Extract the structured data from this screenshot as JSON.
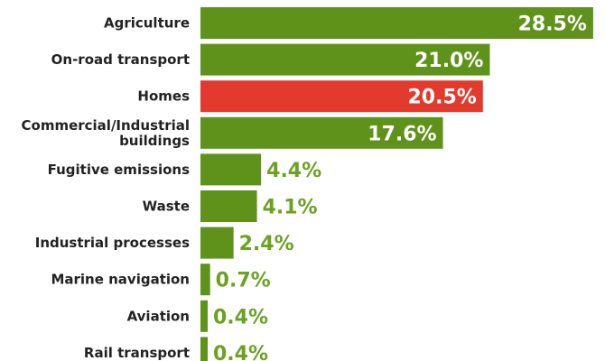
{
  "chart_data": {
    "type": "bar",
    "orientation": "horizontal",
    "categories": [
      "Agriculture",
      "On-road transport",
      "Homes",
      "Commercial/Industrial buildings",
      "Fugitive emissions",
      "Waste",
      "Industrial processes",
      "Marine navigation",
      "Aviation",
      "Rail transport"
    ],
    "category_label_lines": [
      [
        "Agriculture"
      ],
      [
        "On-road transport"
      ],
      [
        "Homes"
      ],
      [
        "Commercial/Industrial",
        "buildings"
      ],
      [
        "Fugitive emissions"
      ],
      [
        "Waste"
      ],
      [
        "Industrial processes"
      ],
      [
        "Marine navigation"
      ],
      [
        "Aviation"
      ],
      [
        "Rail transport"
      ]
    ],
    "values": [
      28.5,
      21.0,
      20.5,
      17.6,
      4.4,
      4.1,
      2.4,
      0.7,
      0.4,
      0.4
    ],
    "value_labels": [
      "28.5%",
      "21.0%",
      "20.5%",
      "17.6%",
      "4.4%",
      "4.1%",
      "2.4%",
      "0.7%",
      "0.4%",
      "0.4%"
    ],
    "highlighted_category": "Homes",
    "title": "",
    "xlabel": "",
    "ylabel": "",
    "grid": false,
    "legend": "none",
    "colors": {
      "bar": "#5e921a",
      "bar_highlight": "#e23a2c",
      "value_text_outside": "#6aa222",
      "value_text_inside": "#ffffff",
      "category_text": "#222222"
    }
  }
}
